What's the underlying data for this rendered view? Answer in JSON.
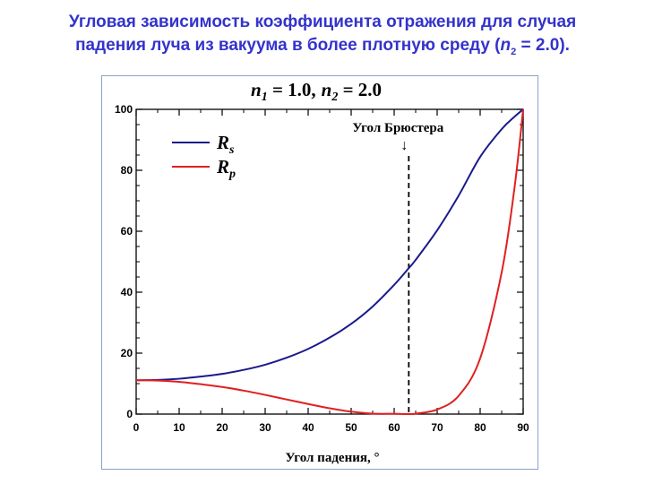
{
  "slide": {
    "title_line1": "Угловая зависимость коэффициента отражения для случая",
    "title_line2_pre": "падения луча из вакуума в более плотную среду (",
    "title_n": "n",
    "title_sub": "2",
    "title_line2_post": " = 2.0)."
  },
  "chart_data": {
    "type": "line",
    "header": {
      "n1_sym": "n",
      "n1_sub": "1",
      "n1_val": " = 1.0,",
      "n2_sym": "n",
      "n2_sub": "2",
      "n2_val": " = 2.0"
    },
    "xlabel": "Угол падения, °",
    "ylabel": "",
    "xlim": [
      0,
      90
    ],
    "ylim": [
      0,
      100
    ],
    "x_ticks": [
      "0",
      "10",
      "20",
      "30",
      "40",
      "50",
      "60",
      "70",
      "80",
      "90"
    ],
    "y_ticks": [
      "0",
      "20",
      "40",
      "60",
      "80",
      "100"
    ],
    "legend": {
      "placement": "top-left",
      "entries": [
        {
          "sym": "R",
          "sub": "s",
          "color": "#1a1a8c"
        },
        {
          "sym": "R",
          "sub": "p",
          "color": "#e02020"
        }
      ]
    },
    "series": [
      {
        "key": "Rs",
        "color": "#1a1a8c",
        "x": [
          0,
          5,
          10,
          15,
          20,
          25,
          30,
          35,
          40,
          45,
          50,
          55,
          60,
          63.4,
          65,
          70,
          75,
          80,
          85,
          88,
          90
        ],
        "y": [
          11.1,
          11.2,
          11.6,
          12.3,
          13.2,
          14.5,
          16.2,
          18.5,
          21.4,
          25.1,
          29.6,
          35.3,
          42.4,
          47.9,
          50.6,
          60.3,
          71.7,
          84.4,
          93.5,
          97.6,
          100
        ]
      },
      {
        "key": "Rp",
        "color": "#e02020",
        "x": [
          0,
          5,
          10,
          15,
          20,
          25,
          30,
          35,
          40,
          45,
          50,
          55,
          60,
          63.4,
          65,
          70,
          75,
          80,
          85,
          88,
          90
        ],
        "y": [
          11.1,
          11.0,
          10.6,
          9.8,
          8.9,
          7.7,
          6.3,
          4.8,
          3.3,
          1.9,
          0.8,
          0.15,
          0.1,
          0,
          0.15,
          1.5,
          6.0,
          18.3,
          46.5,
          74.4,
          100
        ]
      }
    ],
    "annotation": {
      "label": "Угол Брюстера",
      "arrow": "↓",
      "x": 63.4
    }
  }
}
